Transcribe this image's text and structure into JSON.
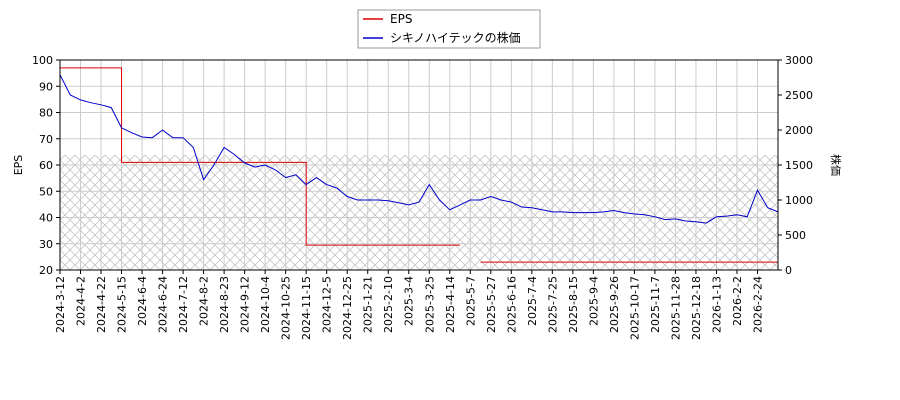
{
  "chart_data": {
    "type": "line",
    "categories": [
      "2024-3-12",
      null,
      "2024-4-2",
      null,
      "2024-4-22",
      null,
      "2024-5-15",
      null,
      "2024-6-4",
      null,
      "2024-6-24",
      null,
      "2024-7-12",
      null,
      "2024-8-2",
      null,
      "2024-8-23",
      null,
      "2024-9-12",
      null,
      "2024-10-4",
      null,
      "2024-10-25",
      null,
      "2024-11-15",
      null,
      "2024-12-5",
      null,
      "2024-12-25",
      null,
      "2025-1-21",
      null,
      "2025-2-10",
      null,
      "2025-3-4",
      null,
      "2025-3-25",
      null,
      "2025-4-14",
      null,
      "2025-5-7",
      null,
      "2025-5-27",
      null,
      "2025-6-16",
      null,
      "2025-7-4",
      null,
      "2025-7-25",
      null,
      "2025-8-15",
      null,
      "2025-9-4",
      null,
      "2025-9-26",
      null,
      "2025-10-17",
      null,
      "2025-11-7",
      null,
      "2025-11-28",
      null,
      "2025-12-18",
      null,
      "2026-1-13",
      null,
      "2026-2-2",
      null,
      "2026-2-24",
      null,
      null
    ],
    "series": [
      {
        "name": "EPS",
        "color": "#dd0000",
        "axis": "y",
        "step": true,
        "values": [
          97,
          97,
          97,
          97,
          97,
          97,
          61,
          61,
          61,
          61,
          61,
          61,
          61,
          61,
          61,
          61,
          61,
          61,
          61,
          61,
          61,
          61,
          61,
          61,
          29.5,
          29.5,
          29.5,
          29.5,
          29.5,
          29.5,
          29.5,
          29.5,
          29.5,
          29.5,
          29.5,
          29.5,
          29.5,
          29.5,
          29.5,
          null,
          null,
          23,
          23,
          23,
          23,
          23,
          23,
          23,
          23,
          23,
          23,
          23,
          23,
          23,
          23,
          23,
          23,
          23,
          23,
          23,
          23,
          23,
          23,
          23,
          23,
          23,
          23,
          23,
          23,
          23,
          23
        ]
      },
      {
        "name": "シキノハイテックの株価",
        "color": "#0000cc",
        "axis": "y2",
        "step": false,
        "values": [
          2790,
          2500,
          2430,
          2390,
          2360,
          2320,
          2030,
          1960,
          1900,
          1890,
          2000,
          1890,
          1890,
          1750,
          1290,
          1500,
          1750,
          1650,
          1530,
          1470,
          1500,
          1430,
          1320,
          1360,
          1220,
          1320,
          1220,
          1170,
          1050,
          1000,
          1000,
          1000,
          990,
          960,
          930,
          970,
          1220,
          1000,
          860,
          930,
          1000,
          1000,
          1050,
          1000,
          970,
          900,
          890,
          860,
          830,
          830,
          820,
          820,
          820,
          830,
          850,
          820,
          800,
          790,
          760,
          720,
          730,
          700,
          690,
          670,
          760,
          770,
          790,
          760,
          1140,
          890,
          830
        ]
      }
    ],
    "ylabel": "EPS",
    "y2label": "株価",
    "ylim": [
      20,
      100
    ],
    "yticks": [
      20,
      30,
      40,
      50,
      60,
      70,
      80,
      90,
      100
    ],
    "y2lim": [
      0,
      3000
    ],
    "y2ticks": [
      0,
      500,
      1000,
      1500,
      2000,
      2500,
      3000
    ],
    "grid": true,
    "legend": "top"
  }
}
